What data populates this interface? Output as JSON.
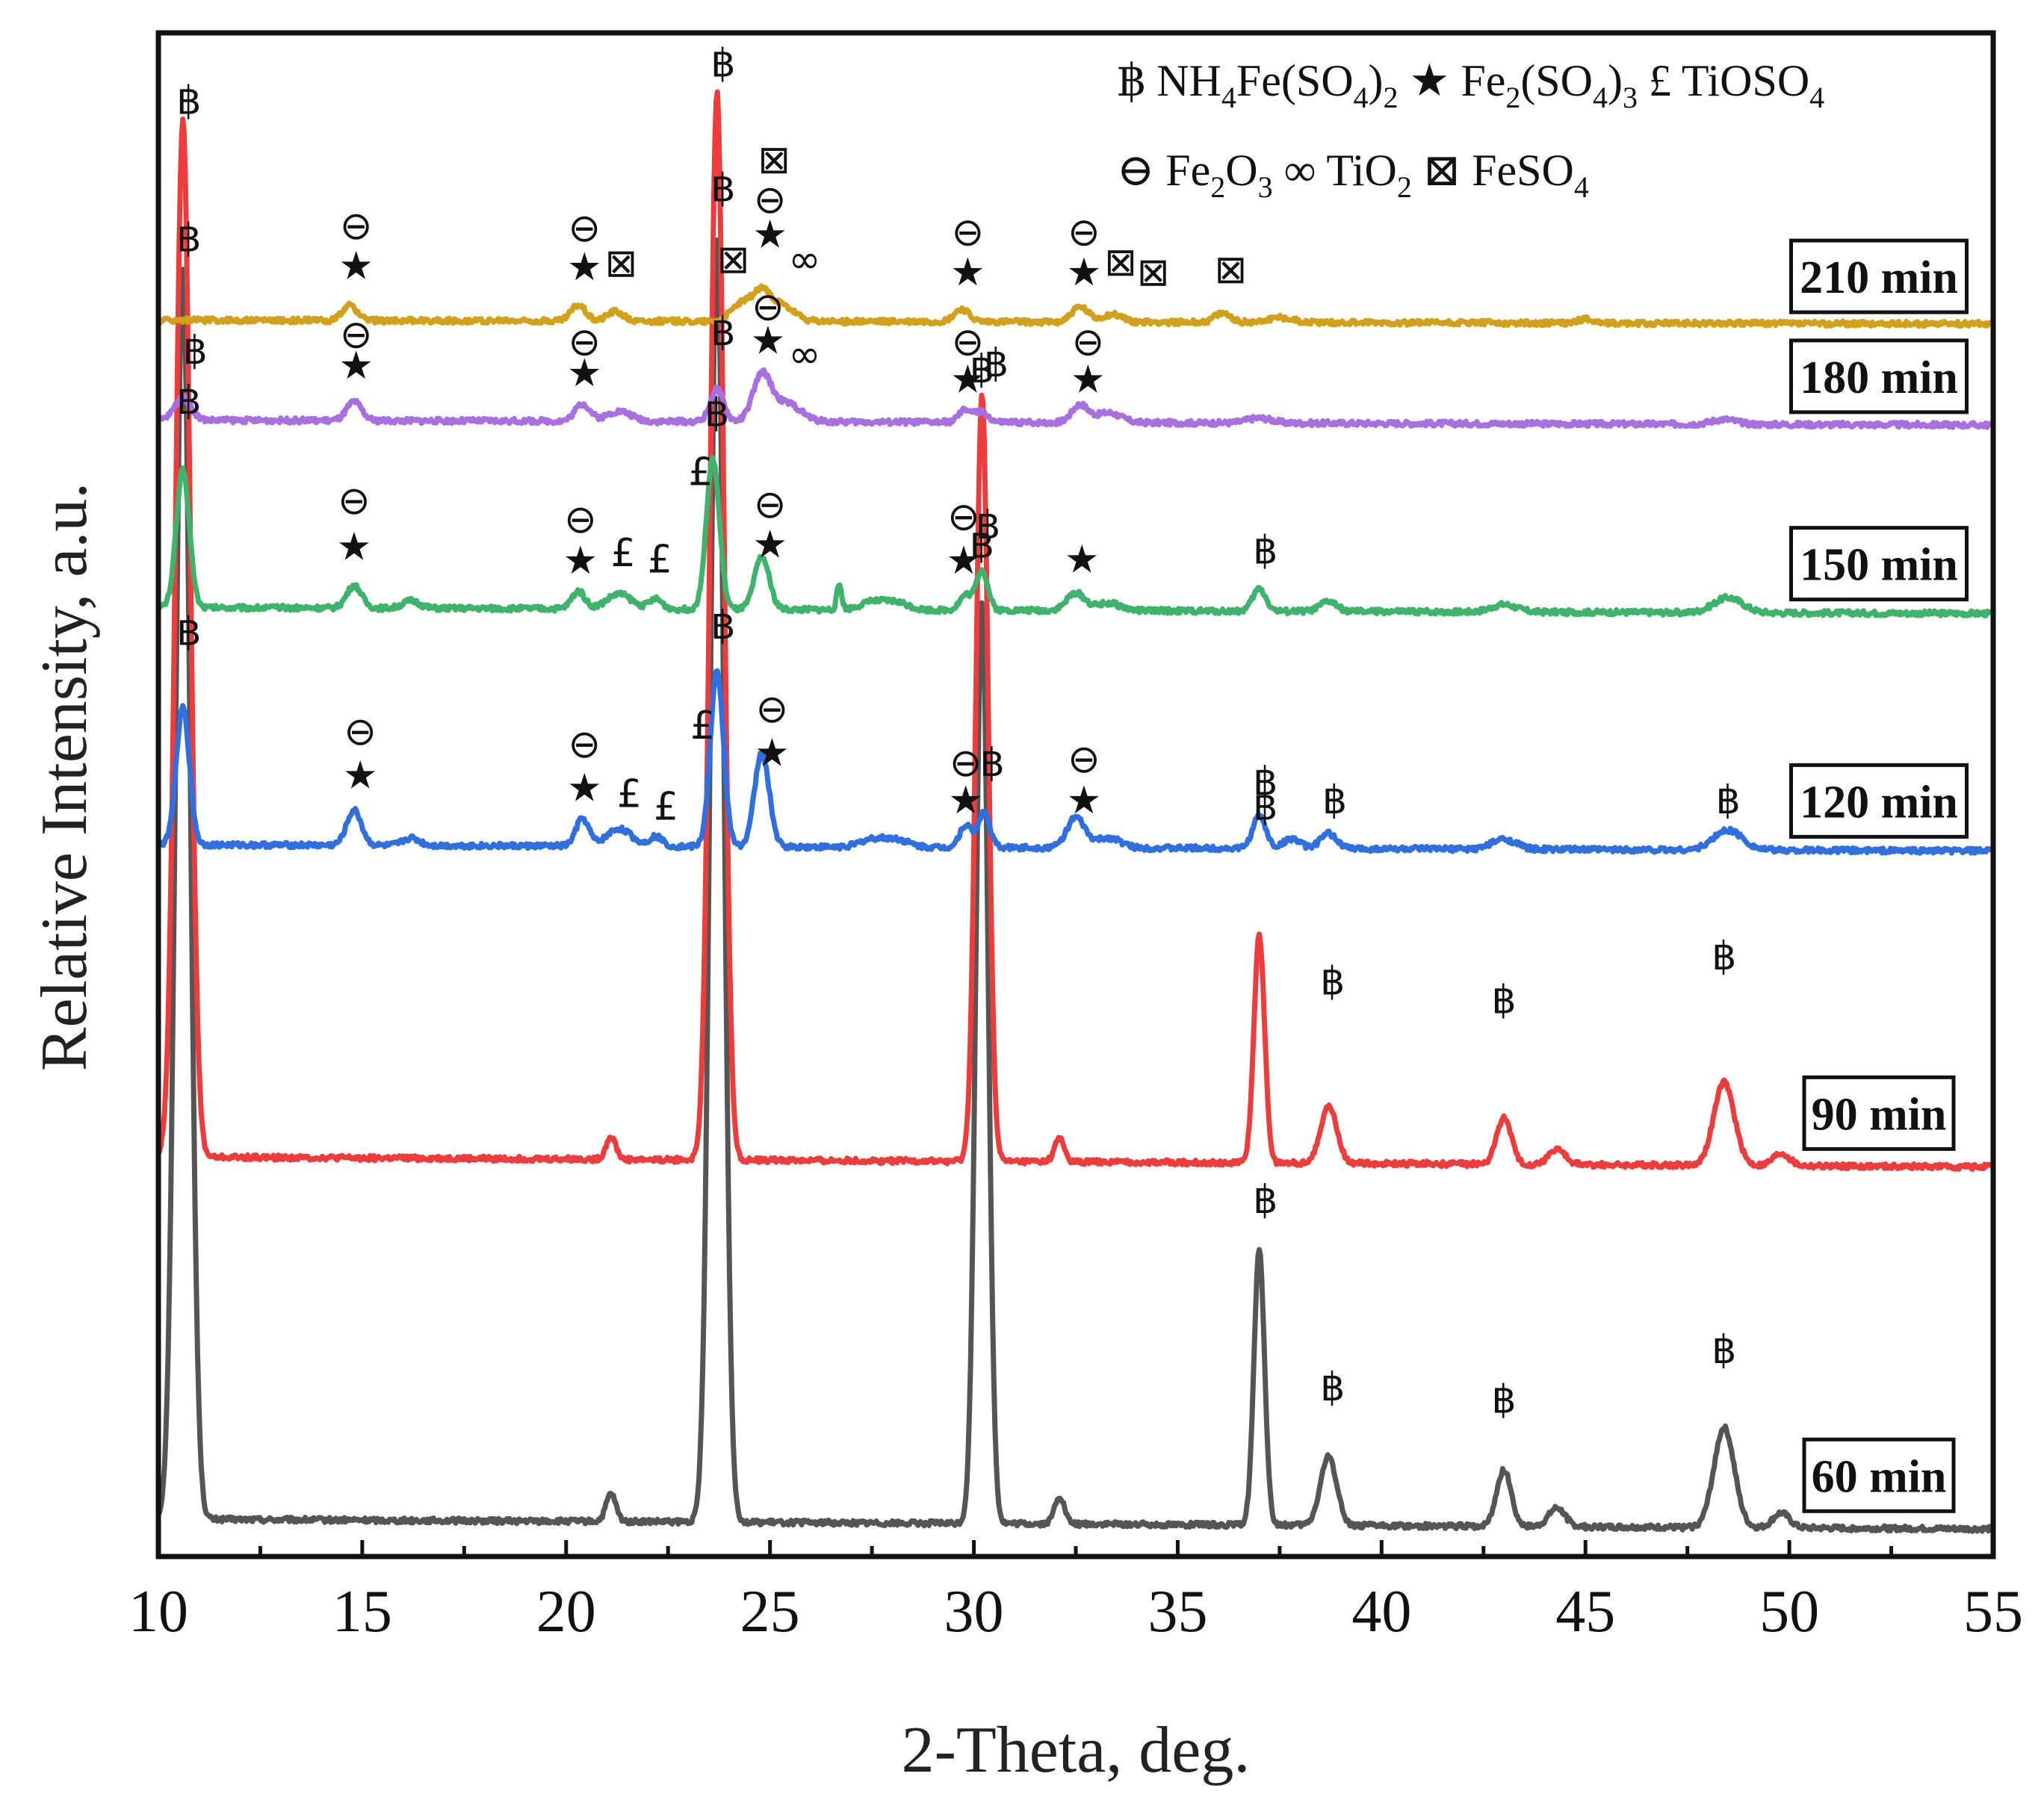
{
  "chart_data": {
    "type": "line",
    "title": "",
    "xlabel": "2-Theta, deg.",
    "ylabel": "Relative Intensity, a.u.",
    "xlim": [
      10,
      55
    ],
    "ylim": [
      0,
      1220
    ],
    "xticks": [
      10,
      15,
      20,
      25,
      30,
      35,
      40,
      45,
      50,
      55
    ],
    "yticks": [],
    "grid": false,
    "legend_position": "top-right",
    "legend": {
      "row1": [
        {
          "symbol": "฿",
          "text": "NH4Fe(SO4)2"
        },
        {
          "symbol": "★",
          "text": "Fe2(SO4)3"
        },
        {
          "symbol": "£",
          "text": "TiOSO4"
        }
      ],
      "row2": [
        {
          "symbol": "⊖",
          "text": "Fe2O3"
        },
        {
          "symbol": "∞",
          "text": "TiO2"
        },
        {
          "symbol": "⊠",
          "text": "FeSO4"
        }
      ]
    },
    "series": [
      {
        "name": "60 min",
        "color": "#555555",
        "baseline": 30,
        "slope": -8,
        "amp": 1.0,
        "peaks": [
          [
            10.6,
            1000,
            0.18
          ],
          [
            21.1,
            22,
            0.12
          ],
          [
            23.7,
            1030,
            0.17
          ],
          [
            30.2,
            740,
            0.15
          ],
          [
            32.1,
            22,
            0.12
          ],
          [
            37.0,
            220,
            0.13
          ],
          [
            38.7,
            55,
            0.2
          ],
          [
            43.0,
            45,
            0.18
          ],
          [
            44.3,
            15,
            0.2
          ],
          [
            48.4,
            80,
            0.25
          ],
          [
            49.8,
            12,
            0.2
          ]
        ],
        "markers": [
          {
            "s": "฿",
            "x": 10.75,
            "y": 1045
          },
          {
            "s": "฿",
            "x": 23.85,
            "y": 1085
          },
          {
            "s": "฿",
            "x": 30.2,
            "y": 800
          },
          {
            "s": "฿",
            "x": 37.15,
            "y": 275
          },
          {
            "s": "฿",
            "x": 38.8,
            "y": 125
          },
          {
            "s": "฿",
            "x": 43.0,
            "y": 115
          },
          {
            "s": "฿",
            "x": 48.4,
            "y": 155
          }
        ]
      },
      {
        "name": "90 min",
        "color": "#ee3b3b",
        "baseline": 320,
        "slope": -8,
        "amp": 0.83,
        "peaks": [
          [
            10.6,
            1000,
            0.18
          ],
          [
            21.1,
            22,
            0.12
          ],
          [
            23.7,
            1030,
            0.17
          ],
          [
            30.2,
            740,
            0.15
          ],
          [
            32.1,
            22,
            0.12
          ],
          [
            37.0,
            220,
            0.13
          ],
          [
            38.7,
            55,
            0.2
          ],
          [
            43.0,
            45,
            0.18
          ],
          [
            44.3,
            15,
            0.2
          ],
          [
            48.4,
            80,
            0.25
          ],
          [
            49.8,
            12,
            0.2
          ]
        ],
        "markers": [
          {
            "s": "฿",
            "x": 10.75,
            "y": 1155
          },
          {
            "s": "฿",
            "x": 23.85,
            "y": 1185
          },
          {
            "s": "฿",
            "x": 30.2,
            "y": 940
          },
          {
            "s": "฿",
            "x": 37.15,
            "y": 590
          },
          {
            "s": "฿",
            "x": 38.8,
            "y": 450
          },
          {
            "s": "฿",
            "x": 43.0,
            "y": 435
          },
          {
            "s": "฿",
            "x": 48.4,
            "y": 470
          }
        ]
      },
      {
        "name": "120 min",
        "color": "#2f6fe0",
        "baseline": 570,
        "slope": -5,
        "amp": 1.0,
        "peaks": [
          [
            10.6,
            110,
            0.16
          ],
          [
            14.8,
            28,
            0.18
          ],
          [
            16.2,
            6,
            0.2
          ],
          [
            20.4,
            22,
            0.16
          ],
          [
            21.3,
            14,
            0.3
          ],
          [
            22.2,
            8,
            0.16
          ],
          [
            23.7,
            140,
            0.16
          ],
          [
            24.8,
            75,
            0.18
          ],
          [
            27.5,
            6,
            0.3
          ],
          [
            28.1,
            6,
            0.3
          ],
          [
            29.8,
            18,
            0.15
          ],
          [
            30.25,
            28,
            0.14
          ],
          [
            32.5,
            24,
            0.22
          ],
          [
            33.3,
            8,
            0.3
          ],
          [
            37.0,
            26,
            0.16
          ],
          [
            37.8,
            8,
            0.2
          ],
          [
            38.7,
            12,
            0.2
          ],
          [
            43.0,
            8,
            0.3
          ],
          [
            48.5,
            16,
            0.35
          ]
        ],
        "markers": [
          {
            "s": "฿",
            "x": 10.75,
            "y": 730
          },
          {
            "s": "⊖",
            "x": 14.95,
            "y": 650
          },
          {
            "s": "★",
            "x": 14.95,
            "y": 615
          },
          {
            "s": "⊖",
            "x": 20.45,
            "y": 640
          },
          {
            "s": "★",
            "x": 20.45,
            "y": 605
          },
          {
            "s": "£",
            "x": 21.55,
            "y": 600
          },
          {
            "s": "£",
            "x": 22.45,
            "y": 590
          },
          {
            "s": "£",
            "x": 23.35,
            "y": 655
          },
          {
            "s": "฿",
            "x": 23.85,
            "y": 735
          },
          {
            "s": "⊖",
            "x": 25.05,
            "y": 668
          },
          {
            "s": "★",
            "x": 25.05,
            "y": 633
          },
          {
            "s": "⊖",
            "x": 29.8,
            "y": 625
          },
          {
            "s": "★",
            "x": 29.8,
            "y": 595
          },
          {
            "s": "฿",
            "x": 30.45,
            "y": 625
          },
          {
            "s": "⊖",
            "x": 32.7,
            "y": 628
          },
          {
            "s": "★",
            "x": 32.7,
            "y": 595
          },
          {
            "s": "฿",
            "x": 37.15,
            "y": 610
          },
          {
            "s": "฿",
            "x": 38.85,
            "y": 595
          },
          {
            "s": "฿",
            "x": 48.5,
            "y": 595
          }
        ]
      },
      {
        "name": "150 min",
        "color": "#3db36b",
        "baseline": 760,
        "slope": -5,
        "amp": 1.0,
        "peaks": [
          [
            10.6,
            110,
            0.16
          ],
          [
            14.8,
            18,
            0.18
          ],
          [
            16.2,
            6,
            0.2
          ],
          [
            20.3,
            14,
            0.16
          ],
          [
            21.3,
            12,
            0.3
          ],
          [
            22.2,
            8,
            0.16
          ],
          [
            23.6,
            120,
            0.16
          ],
          [
            24.8,
            42,
            0.18
          ],
          [
            26.7,
            20,
            0.06
          ],
          [
            27.5,
            6,
            0.3
          ],
          [
            28.1,
            6,
            0.3
          ],
          [
            29.8,
            12,
            0.15
          ],
          [
            30.2,
            32,
            0.14
          ],
          [
            32.5,
            14,
            0.22
          ],
          [
            33.3,
            6,
            0.3
          ],
          [
            37.0,
            18,
            0.16
          ],
          [
            38.7,
            8,
            0.2
          ],
          [
            43.0,
            6,
            0.3
          ],
          [
            48.5,
            12,
            0.35
          ]
        ],
        "markers": [
          {
            "s": "฿",
            "x": 10.75,
            "y": 915
          },
          {
            "s": "⊖",
            "x": 14.8,
            "y": 835
          },
          {
            "s": "★",
            "x": 14.8,
            "y": 798
          },
          {
            "s": "⊖",
            "x": 20.35,
            "y": 820
          },
          {
            "s": "★",
            "x": 20.35,
            "y": 787
          },
          {
            "s": "£",
            "x": 21.4,
            "y": 793
          },
          {
            "s": "£",
            "x": 22.3,
            "y": 788
          },
          {
            "s": "£",
            "x": 23.3,
            "y": 858
          },
          {
            "s": "฿",
            "x": 23.7,
            "y": 905
          },
          {
            "s": "⊖",
            "x": 25.0,
            "y": 832
          },
          {
            "s": "★",
            "x": 25.0,
            "y": 800
          },
          {
            "s": "⊖",
            "x": 29.75,
            "y": 822
          },
          {
            "s": "★",
            "x": 29.75,
            "y": 787
          },
          {
            "s": "฿",
            "x": 30.35,
            "y": 815
          },
          {
            "s": "★",
            "x": 32.65,
            "y": 788
          },
          {
            "s": "฿",
            "x": 37.15,
            "y": 795
          }
        ]
      },
      {
        "name": "180 min",
        "color": "#a86fe0",
        "baseline": 910,
        "slope": -4,
        "amp": 1.0,
        "peaks": [
          [
            10.6,
            18,
            0.2
          ],
          [
            14.8,
            15,
            0.18
          ],
          [
            20.4,
            14,
            0.18
          ],
          [
            21.3,
            8,
            0.3
          ],
          [
            23.7,
            26,
            0.16
          ],
          [
            24.8,
            36,
            0.22
          ],
          [
            25.4,
            15,
            0.35
          ],
          [
            29.8,
            10,
            0.16
          ],
          [
            30.2,
            8,
            0.15
          ],
          [
            32.6,
            14,
            0.2
          ],
          [
            33.3,
            8,
            0.3
          ],
          [
            37.0,
            4,
            0.3
          ],
          [
            48.4,
            4,
            0.3
          ]
        ],
        "markers": [
          {
            "s": "฿",
            "x": 10.9,
            "y": 955
          },
          {
            "s": "⊖",
            "x": 14.85,
            "y": 968
          },
          {
            "s": "★",
            "x": 14.85,
            "y": 943
          },
          {
            "s": "⊖",
            "x": 20.45,
            "y": 962
          },
          {
            "s": "★",
            "x": 20.45,
            "y": 937
          },
          {
            "s": "฿",
            "x": 23.85,
            "y": 970
          },
          {
            "s": "⊖",
            "x": 24.95,
            "y": 990
          },
          {
            "s": "★",
            "x": 24.95,
            "y": 963
          },
          {
            "s": "∞",
            "x": 25.85,
            "y": 952
          },
          {
            "s": "⊖",
            "x": 29.85,
            "y": 962
          },
          {
            "s": "★",
            "x": 29.85,
            "y": 932
          },
          {
            "s": "฿",
            "x": 30.55,
            "y": 945
          },
          {
            "s": "⊖",
            "x": 32.8,
            "y": 962
          },
          {
            "s": "★",
            "x": 32.8,
            "y": 932
          }
        ]
      },
      {
        "name": "210 min",
        "color": "#d3a01a",
        "baseline": 990,
        "slope": -3,
        "amp": 1.0,
        "peaks": [
          [
            14.7,
            12,
            0.18
          ],
          [
            20.3,
            13,
            0.18
          ],
          [
            21.2,
            8,
            0.2
          ],
          [
            24.3,
            14,
            0.25
          ],
          [
            24.8,
            22,
            0.22
          ],
          [
            25.3,
            12,
            0.3
          ],
          [
            29.7,
            10,
            0.18
          ],
          [
            32.6,
            12,
            0.2
          ],
          [
            33.4,
            6,
            0.25
          ],
          [
            36.1,
            7,
            0.2
          ],
          [
            37.5,
            4,
            0.3
          ],
          [
            45.0,
            3,
            0.2
          ]
        ],
        "markers": [
          {
            "s": "⊖",
            "x": 14.85,
            "y": 1055
          },
          {
            "s": "★",
            "x": 14.85,
            "y": 1023
          },
          {
            "s": "⊖",
            "x": 20.45,
            "y": 1053
          },
          {
            "s": "★",
            "x": 20.45,
            "y": 1022
          },
          {
            "s": "⊠",
            "x": 21.35,
            "y": 1025
          },
          {
            "s": "⊠",
            "x": 24.1,
            "y": 1028
          },
          {
            "s": "⊠",
            "x": 25.1,
            "y": 1108
          },
          {
            "s": "⊖",
            "x": 25.0,
            "y": 1076
          },
          {
            "s": "★",
            "x": 25.0,
            "y": 1048
          },
          {
            "s": "∞",
            "x": 25.85,
            "y": 1028
          },
          {
            "s": "⊖",
            "x": 29.85,
            "y": 1050
          },
          {
            "s": "★",
            "x": 29.85,
            "y": 1018
          },
          {
            "s": "⊖",
            "x": 32.7,
            "y": 1050
          },
          {
            "s": "★",
            "x": 32.7,
            "y": 1018
          },
          {
            "s": "⊠",
            "x": 33.6,
            "y": 1026
          },
          {
            "s": "⊠",
            "x": 34.4,
            "y": 1018
          },
          {
            "s": "⊠",
            "x": 36.3,
            "y": 1020
          }
        ]
      }
    ]
  }
}
